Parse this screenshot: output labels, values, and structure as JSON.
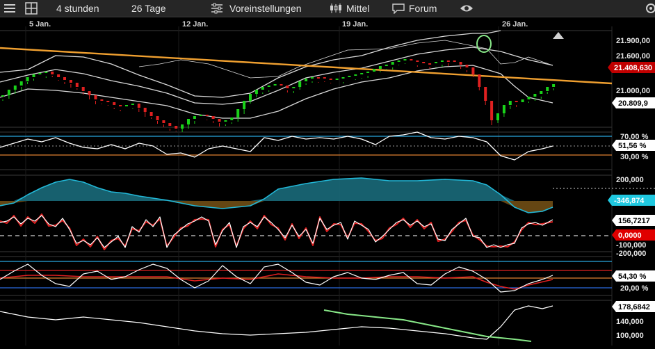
{
  "toolbar": {
    "interval_label": "4 stunden",
    "range_label": "26 Tage",
    "presets_label": "Voreinstellungen",
    "chart_style_label": "Mittel",
    "forum_label": "Forum",
    "icons": {
      "left": "hamburger-icon",
      "layout": "grid-icon",
      "presets": "sliders-icon",
      "chart_style": "candlestick-icon",
      "forum": "speech-bubble-icon",
      "view": "eye-icon",
      "settings": "gear-icon"
    }
  },
  "time_axis": {
    "labels": [
      "5 Jan.",
      "12 Jan.",
      "19 Jan.",
      "26 Jan."
    ]
  },
  "price_panel": {
    "axis_labels": [
      "21.900,00",
      "21.600,00",
      "21.000,00"
    ],
    "current_price": "21.408,630",
    "lower_band_value": "20.809,9",
    "colors": {
      "up": "#19d219",
      "down": "#e02020",
      "bands": "#d9d9d9",
      "trend": "#f0a030",
      "price_tag": "#c00000"
    }
  },
  "rsi_panel": {
    "axis_labels": [
      "70,00 %",
      "30,00 %"
    ],
    "current_value": "51,56 %",
    "colors": {
      "line": "#ffffff",
      "upper_level": "#2aa8e0",
      "lower_level": "#e08030"
    }
  },
  "oscillator_panel": {
    "axis_labels": [
      "200,000"
    ],
    "current_value": "-346,874",
    "colors": {
      "positive": "#22b8d8",
      "negative": "#c88418",
      "tag": "#1fc8e0"
    }
  },
  "cci_panel": {
    "axis_labels": [
      "-100,000",
      "-200,000"
    ],
    "current_value": "156,7217",
    "signal_value": "0,0000",
    "colors": {
      "main": "#ffffff",
      "signal": "#e02020",
      "upper_level": "#2aa8e0",
      "lower_level": "#e08030",
      "signal_tag": "#e00000"
    }
  },
  "stoch_panel": {
    "axis_labels": [
      "20,00 %"
    ],
    "current_value": "54,30 %",
    "colors": {
      "k": "#ffffff",
      "d": "#e02020",
      "upper_level": "#e02020",
      "lower_level": "#2a6ae0"
    }
  },
  "volume_panel": {
    "axis_labels": [
      "140,000",
      "100,000"
    ],
    "current_value": "178,6842",
    "colors": {
      "line": "#ffffff",
      "drawing": "#88e888"
    }
  }
}
